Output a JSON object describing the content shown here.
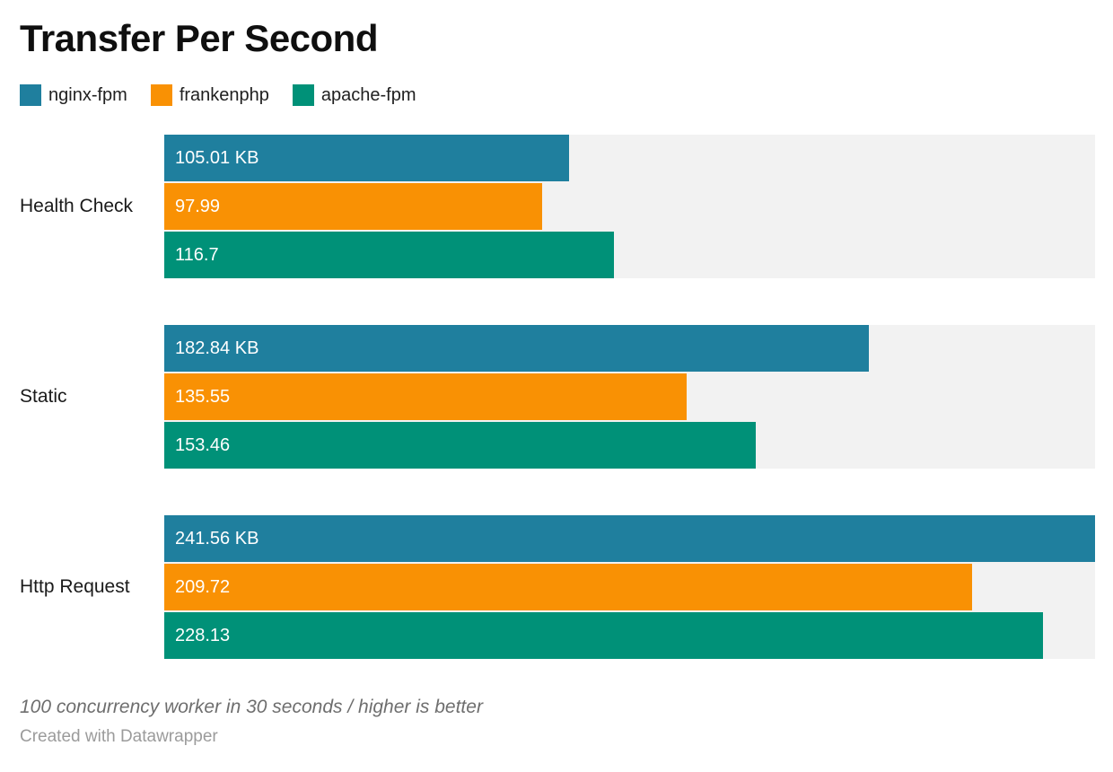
{
  "title": "Transfer Per Second",
  "legend": [
    {
      "label": "nginx-fpm",
      "color": "#1F7F9E"
    },
    {
      "label": "frankenphp",
      "color": "#F99104"
    },
    {
      "label": "apache-fpm",
      "color": "#009178"
    }
  ],
  "footer": {
    "note": "100 concurrency worker in 30 seconds / higher is better",
    "attribution": "Created with Datawrapper"
  },
  "chart_data": {
    "type": "bar",
    "orientation": "horizontal",
    "title": "Transfer Per Second",
    "unit": "KB",
    "xlim": [
      0,
      241.56
    ],
    "grid": false,
    "legend_position": "top",
    "track_color": "#F2F2F2",
    "categories": [
      "Health Check",
      "Static",
      "Http Request"
    ],
    "series": [
      {
        "name": "nginx-fpm",
        "color": "#1F7F9E",
        "values": [
          105.01,
          182.84,
          241.56
        ]
      },
      {
        "name": "frankenphp",
        "color": "#F99104",
        "values": [
          97.99,
          135.55,
          209.72
        ]
      },
      {
        "name": "apache-fpm",
        "color": "#009178",
        "values": [
          116.7,
          153.46,
          228.13
        ]
      }
    ],
    "groups": [
      {
        "label": "Health Check",
        "bars": [
          {
            "series": "nginx-fpm",
            "value": 105.01,
            "display": "105.01 KB",
            "width_pct": 43.47,
            "color": "#1F7F9E"
          },
          {
            "series": "frankenphp",
            "value": 97.99,
            "display": "97.99",
            "width_pct": 40.56,
            "color": "#F99104"
          },
          {
            "series": "apache-fpm",
            "value": 116.7,
            "display": "116.7",
            "width_pct": 48.31,
            "color": "#009178"
          }
        ]
      },
      {
        "label": "Static",
        "bars": [
          {
            "series": "nginx-fpm",
            "value": 182.84,
            "display": "182.84 KB",
            "width_pct": 75.69,
            "color": "#1F7F9E"
          },
          {
            "series": "frankenphp",
            "value": 135.55,
            "display": "135.55",
            "width_pct": 56.11,
            "color": "#F99104"
          },
          {
            "series": "apache-fpm",
            "value": 153.46,
            "display": "153.46",
            "width_pct": 63.53,
            "color": "#009178"
          }
        ]
      },
      {
        "label": "Http Request",
        "bars": [
          {
            "series": "nginx-fpm",
            "value": 241.56,
            "display": "241.56 KB",
            "width_pct": 100,
            "color": "#1F7F9E"
          },
          {
            "series": "frankenphp",
            "value": 209.72,
            "display": "209.72",
            "width_pct": 86.82,
            "color": "#F99104"
          },
          {
            "series": "apache-fpm",
            "value": 228.13,
            "display": "228.13",
            "width_pct": 94.44,
            "color": "#009178"
          }
        ]
      }
    ]
  }
}
